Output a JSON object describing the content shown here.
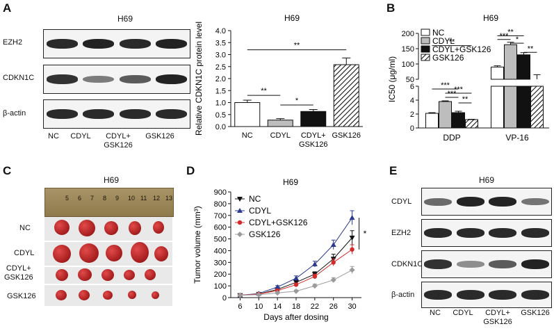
{
  "panels": {
    "A": {
      "letter": "A",
      "title": "H69",
      "blot_rows": [
        "EZH2",
        "CDKN1C",
        "β-actin"
      ],
      "lanes": [
        "NC",
        "CDYL",
        "CDYL+\nGSK126",
        "GSK126"
      ],
      "band_intensity": [
        [
          0.9,
          0.95,
          0.9,
          0.95
        ],
        [
          0.85,
          0.4,
          0.6,
          0.95
        ],
        [
          0.9,
          0.9,
          0.9,
          0.9
        ]
      ]
    },
    "B": {
      "letter": "B",
      "title": "H69",
      "ylabel": "IC50 (μg/ml)",
      "legend": [
        "NC",
        "CDYL",
        "CDYL+GSK126",
        "GSK126"
      ],
      "groups": [
        "DDP",
        "VP-16"
      ]
    },
    "C": {
      "letter": "C",
      "title": "H69",
      "ruler_numbers": [
        "5",
        "6",
        "7",
        "8",
        "9",
        "10",
        "11",
        "12",
        "13"
      ],
      "rows": [
        "NC",
        "CDYL",
        "CDYL+\nGSK126",
        "GSK126"
      ]
    },
    "D": {
      "letter": "D",
      "title": "H69"
    },
    "E": {
      "letter": "E",
      "title": "H69",
      "blot_rows": [
        "CDYL",
        "EZH2",
        "CDKN1C",
        "β-actin"
      ],
      "lanes": [
        "NC",
        "CDYL",
        "CDYL+\nGSK126",
        "GSK126"
      ],
      "band_intensity": [
        [
          0.5,
          0.95,
          0.95,
          0.45
        ],
        [
          0.9,
          0.9,
          0.9,
          0.9
        ],
        [
          0.85,
          0.3,
          0.6,
          0.95
        ],
        [
          0.9,
          0.9,
          0.9,
          0.9
        ]
      ]
    }
  },
  "chart_data": [
    {
      "id": "A-bar",
      "type": "bar",
      "title": "H69",
      "ylabel": "Relative CDKN1C  protein level",
      "categories": [
        "NC",
        "CDYL",
        "CDYL+\nGSK126",
        "GSK126"
      ],
      "values": [
        1.0,
        0.27,
        0.63,
        2.58
      ],
      "errors": [
        0.1,
        0.06,
        0.08,
        0.28
      ],
      "ylim": [
        0,
        4.0
      ],
      "yticks": [
        "0.0",
        "0.5",
        "1.0",
        "1.5",
        "2.0",
        "2.5",
        "3.0",
        "3.5",
        "4.0"
      ],
      "fills": [
        "white",
        "gray",
        "black",
        "hatch"
      ],
      "annotations": [
        {
          "from": 0,
          "to": 1,
          "text": "**"
        },
        {
          "from": 1,
          "to": 2,
          "text": "*"
        },
        {
          "from": 0,
          "to": 3,
          "text": "**"
        }
      ]
    },
    {
      "id": "B-bar",
      "type": "bar",
      "title": "H69",
      "ylabel": "IC50 (μg/ml)",
      "categories": [
        "DDP",
        "VP-16"
      ],
      "series": [
        {
          "name": "NC",
          "values": [
            2.1,
            90
          ],
          "errors": [
            0.1,
            4
          ]
        },
        {
          "name": "CDYL",
          "values": [
            3.8,
            163
          ],
          "errors": [
            0.1,
            8
          ]
        },
        {
          "name": "CDYL+GSK126",
          "values": [
            2.2,
            130
          ],
          "errors": [
            0.2,
            7
          ]
        },
        {
          "name": "GSK126",
          "values": [
            1.2,
            50
          ],
          "errors": [
            0.05,
            15
          ]
        }
      ],
      "broken_axis": {
        "lower_ticks": [
          "0",
          "2",
          "4",
          "6"
        ],
        "upper_ticks": [
          "50",
          "100",
          "150",
          "200"
        ]
      },
      "annotations": [
        {
          "group": "DDP",
          "text": "**"
        },
        {
          "group": "DDP",
          "text": "***"
        },
        {
          "group": "DDP",
          "text": "***"
        },
        {
          "group": "DDP",
          "text": "***"
        },
        {
          "group": "DDP",
          "text": "**"
        },
        {
          "group": "VP-16",
          "text": "**"
        },
        {
          "group": "VP-16",
          "text": "***"
        },
        {
          "group": "VP-16",
          "text": "*"
        },
        {
          "group": "VP-16",
          "text": "**"
        }
      ]
    },
    {
      "id": "D-line",
      "type": "line",
      "title": "H69",
      "xlabel": "Days after dosing",
      "ylabel": "Tumor volume (mm³)",
      "x": [
        6,
        10,
        14,
        18,
        22,
        26,
        30
      ],
      "ylim": [
        0,
        900
      ],
      "yticks": [
        "0",
        "100",
        "200",
        "300",
        "400",
        "500",
        "600",
        "700",
        "800",
        "900"
      ],
      "series": [
        {
          "name": "NC",
          "marker": "triangle-down",
          "color": "#111111",
          "values": [
            20,
            30,
            70,
            130,
            200,
            330,
            510
          ],
          "errors": [
            5,
            8,
            10,
            15,
            20,
            40,
            60
          ]
        },
        {
          "name": "CDYL",
          "marker": "triangle-up",
          "color": "#2b3a8f",
          "values": [
            20,
            35,
            90,
            165,
            285,
            450,
            680
          ],
          "errors": [
            5,
            8,
            12,
            20,
            25,
            40,
            60
          ]
        },
        {
          "name": "CDYL+GSK126",
          "marker": "circle",
          "color": "#d42a2a",
          "values": [
            20,
            30,
            60,
            110,
            180,
            300,
            410
          ],
          "errors": [
            5,
            8,
            10,
            15,
            20,
            30,
            40
          ]
        },
        {
          "name": "GSK126",
          "marker": "diamond",
          "color": "#9a9a9a",
          "values": [
            20,
            25,
            40,
            55,
            100,
            150,
            235
          ],
          "errors": [
            5,
            5,
            8,
            10,
            15,
            20,
            30
          ]
        }
      ],
      "annotation": "*"
    }
  ]
}
